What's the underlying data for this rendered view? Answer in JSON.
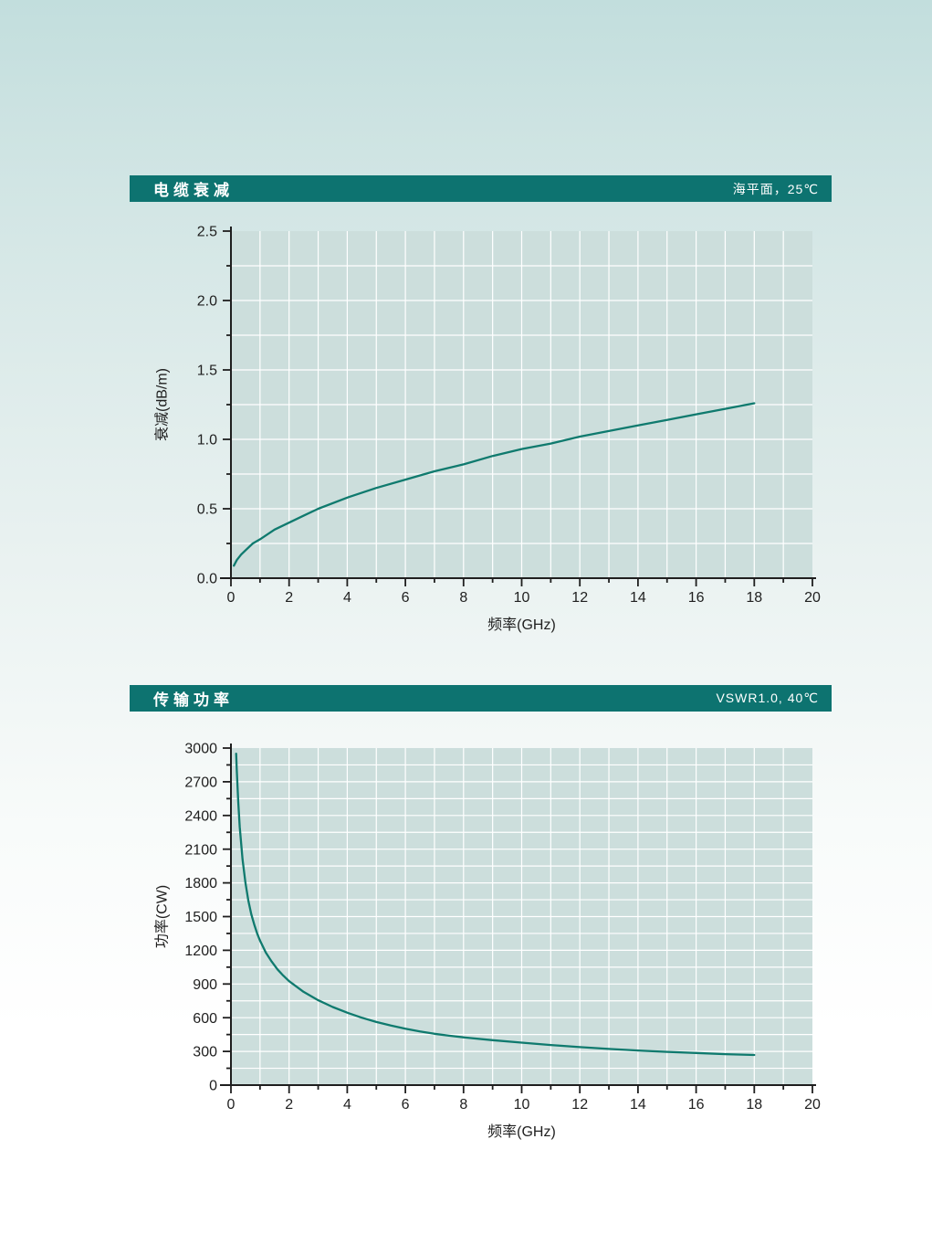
{
  "colors": {
    "accent_bar": "#0d7370",
    "page_top": "#c2dedd",
    "plot_bg": "#ccdedc",
    "grid": "#ffffff",
    "axis": "#1f1f1f",
    "text": "#1f1f1f",
    "curve": "#0f7a6e",
    "bar_text": "#ffffff"
  },
  "chart_data": [
    {
      "type": "line",
      "title": "电缆衰减",
      "condition": "海平面，25℃",
      "xlabel": "频率(GHz)",
      "ylabel": "衰减(dB/m)",
      "xlim": [
        0,
        20
      ],
      "ylim": [
        0,
        2.5
      ],
      "x_major": 2,
      "x_minor": 1,
      "y_major": 0.5,
      "y_minor": 0.25,
      "y_decimals": 1,
      "grid": "on",
      "legend": "none",
      "points": [
        [
          0.1,
          0.09
        ],
        [
          0.2,
          0.13
        ],
        [
          0.35,
          0.17
        ],
        [
          0.5,
          0.2
        ],
        [
          0.75,
          0.25
        ],
        [
          1,
          0.28
        ],
        [
          1.5,
          0.35
        ],
        [
          2,
          0.4
        ],
        [
          2.5,
          0.45
        ],
        [
          3,
          0.5
        ],
        [
          4,
          0.58
        ],
        [
          5,
          0.65
        ],
        [
          6,
          0.71
        ],
        [
          7,
          0.77
        ],
        [
          8,
          0.82
        ],
        [
          9,
          0.88
        ],
        [
          10,
          0.93
        ],
        [
          11,
          0.97
        ],
        [
          12,
          1.02
        ],
        [
          13,
          1.06
        ],
        [
          14,
          1.1
        ],
        [
          15,
          1.14
        ],
        [
          16,
          1.18
        ],
        [
          17,
          1.22
        ],
        [
          18,
          1.26
        ]
      ]
    },
    {
      "type": "line",
      "title": "传输功率",
      "condition": "VSWR1.0, 40℃",
      "xlabel": "频率(GHz)",
      "ylabel": "功率(CW)",
      "xlim": [
        0,
        20
      ],
      "ylim": [
        0,
        3000
      ],
      "x_major": 2,
      "x_minor": 1,
      "y_major": 300,
      "y_minor": 150,
      "y_decimals": 0,
      "grid": "on",
      "legend": "none",
      "points": [
        [
          0.18,
          2950
        ],
        [
          0.2,
          2800
        ],
        [
          0.25,
          2520
        ],
        [
          0.3,
          2300
        ],
        [
          0.4,
          2010
        ],
        [
          0.5,
          1800
        ],
        [
          0.6,
          1640
        ],
        [
          0.7,
          1520
        ],
        [
          0.8,
          1430
        ],
        [
          0.9,
          1350
        ],
        [
          1,
          1285
        ],
        [
          1.2,
          1180
        ],
        [
          1.4,
          1100
        ],
        [
          1.6,
          1030
        ],
        [
          1.8,
          975
        ],
        [
          2,
          925
        ],
        [
          2.5,
          830
        ],
        [
          3,
          755
        ],
        [
          3.5,
          695
        ],
        [
          4,
          645
        ],
        [
          4.5,
          600
        ],
        [
          5,
          562
        ],
        [
          5.5,
          530
        ],
        [
          6,
          502
        ],
        [
          6.5,
          478
        ],
        [
          7,
          457
        ],
        [
          7.5,
          440
        ],
        [
          8,
          425
        ],
        [
          9,
          400
        ],
        [
          10,
          378
        ],
        [
          11,
          357
        ],
        [
          12,
          338
        ],
        [
          13,
          322
        ],
        [
          14,
          308
        ],
        [
          15,
          296
        ],
        [
          16,
          286
        ],
        [
          17,
          276
        ],
        [
          18,
          268
        ]
      ]
    }
  ]
}
